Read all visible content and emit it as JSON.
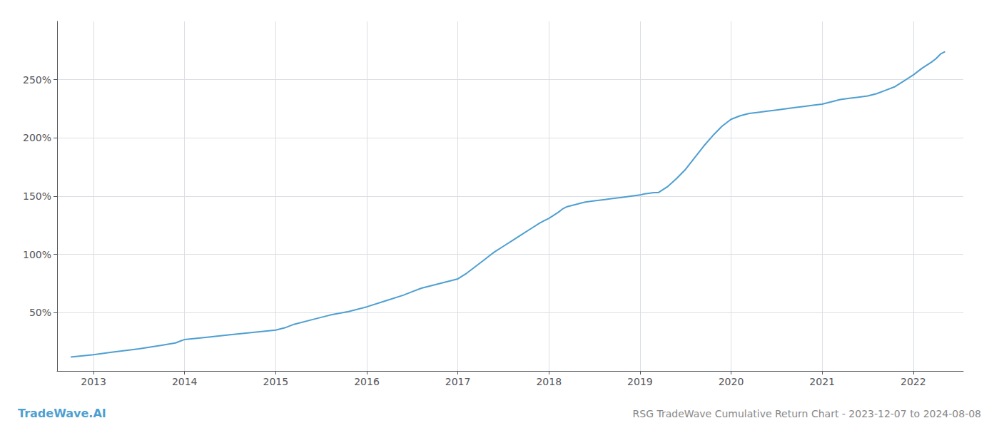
{
  "chart_data": {
    "type": "line",
    "title": "RSG TradeWave Cumulative Return Chart - 2023-12-07 to 2024-08-08",
    "annotations": [
      "TradeWave.AI"
    ],
    "color": "#4e9fd1",
    "grid": true,
    "x": [
      2012.75,
      2013.0,
      2013.2,
      2013.5,
      2013.75,
      2013.9,
      2014.0,
      2014.25,
      2014.5,
      2014.75,
      2015.0,
      2015.1,
      2015.2,
      2015.4,
      2015.6,
      2015.8,
      2016.0,
      2016.2,
      2016.4,
      2016.5,
      2016.6,
      2016.7,
      2016.8,
      2016.9,
      2017.0,
      2017.1,
      2017.2,
      2017.3,
      2017.35,
      2017.4,
      2017.5,
      2017.6,
      2017.7,
      2017.8,
      2017.9,
      2018.0,
      2018.1,
      2018.15,
      2018.2,
      2018.3,
      2018.35,
      2018.4,
      2018.5,
      2018.6,
      2018.7,
      2018.8,
      2018.9,
      2019.0,
      2019.05,
      2019.1,
      2019.15,
      2019.2,
      2019.3,
      2019.4,
      2019.5,
      2019.6,
      2019.7,
      2019.8,
      2019.9,
      2020.0,
      2020.1,
      2020.2,
      2020.3,
      2020.4,
      2020.5,
      2020.6,
      2020.7,
      2020.8,
      2020.9,
      2021.0,
      2021.1,
      2021.2,
      2021.3,
      2021.4,
      2021.5,
      2021.6,
      2021.7,
      2021.8,
      2021.9,
      2022.0,
      2022.1,
      2022.2,
      2022.25,
      2022.3,
      2022.35
    ],
    "values": [
      12,
      14,
      16,
      19,
      22,
      24,
      27,
      29,
      31,
      33,
      35,
      37,
      40,
      44,
      48,
      51,
      55,
      60,
      65,
      68,
      71,
      73,
      75,
      77,
      79,
      84,
      90,
      96,
      99,
      102,
      107,
      112,
      117,
      122,
      127,
      131,
      136,
      139,
      141,
      143,
      144,
      145,
      146,
      147,
      148,
      149,
      150,
      151,
      152,
      152.5,
      153,
      153,
      158,
      165,
      173,
      183,
      193,
      202,
      210,
      216,
      219,
      221,
      222,
      223,
      224,
      225,
      226,
      227,
      228,
      229,
      231,
      233,
      234,
      235,
      236,
      238,
      241,
      244,
      249,
      254,
      260,
      265,
      268,
      272,
      274
    ],
    "xlim": [
      2012.6,
      2022.55
    ],
    "xticks": [
      2013,
      2014,
      2015,
      2016,
      2017,
      2018,
      2019,
      2020,
      2021,
      2022
    ],
    "ylim": [
      0,
      300
    ],
    "yticks": [
      {
        "value": 50,
        "label": "50%"
      },
      {
        "value": 100,
        "label": "100%"
      },
      {
        "value": 150,
        "label": "150%"
      },
      {
        "value": 200,
        "label": "200%"
      },
      {
        "value": 250,
        "label": "250%"
      }
    ]
  }
}
